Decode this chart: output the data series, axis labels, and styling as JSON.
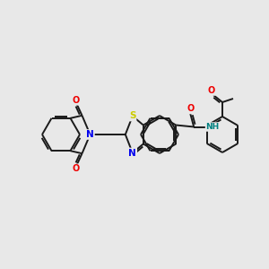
{
  "bg_color": "#e8e8e8",
  "bond_color": "#1a1a1a",
  "atom_colors": {
    "N": "#0000ee",
    "O": "#ee0000",
    "S": "#cccc00",
    "NH": "#008080"
  },
  "figsize": [
    3.0,
    3.0
  ],
  "dpi": 100
}
